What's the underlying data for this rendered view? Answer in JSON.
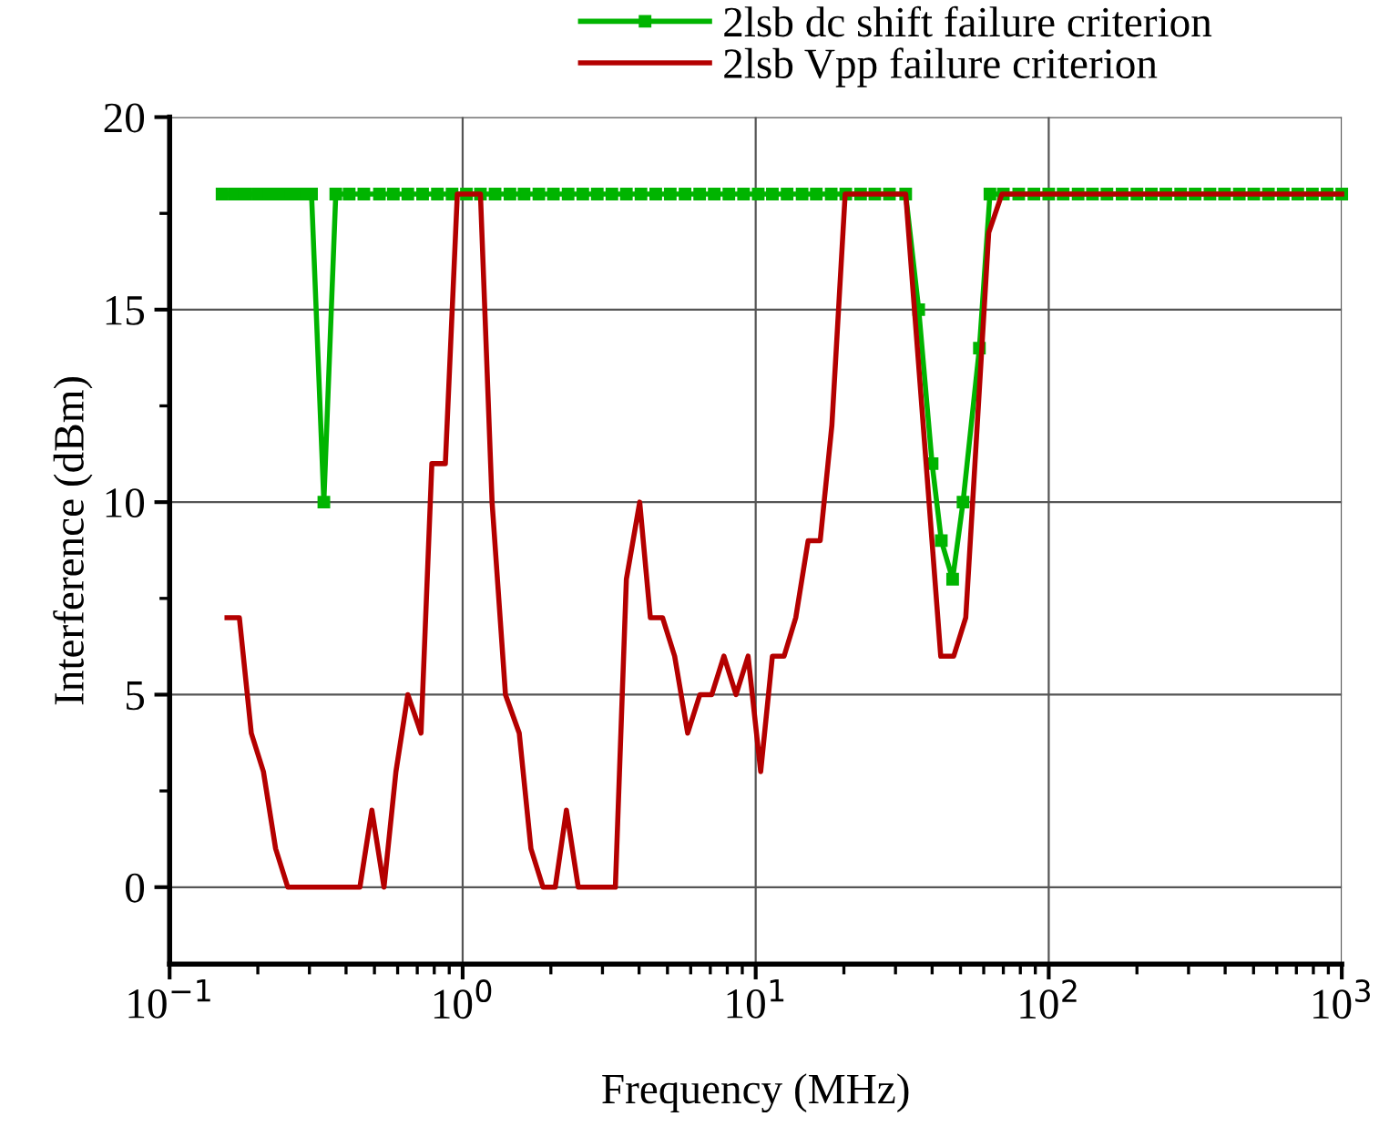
{
  "chart_data": {
    "type": "line",
    "xlabel": "Frequency (MHz)",
    "ylabel": "Interference (dBm)",
    "log": "x",
    "xlim": [
      0.1,
      1000
    ],
    "xticks": [
      {
        "value": 0.1,
        "label": "10$^{−1}$"
      },
      {
        "value": 1,
        "label": "10$^{0}$"
      },
      {
        "value": 10,
        "label": "10$^{1}$"
      },
      {
        "value": 100,
        "label": "10$^{2}$"
      },
      {
        "value": 1000,
        "label": "10$^{3}$"
      }
    ],
    "ylim": [
      -2,
      20
    ],
    "yticks": [
      0,
      5,
      10,
      15,
      20
    ],
    "grid": true,
    "legend": "top",
    "series": [
      {
        "name": "2lsb dc shift failure criterion",
        "color": "#00b400",
        "marker": "square",
        "x": [
          0.151,
          0.166,
          0.182,
          0.2,
          0.219,
          0.24,
          0.263,
          0.288,
          0.305,
          0.336,
          0.369,
          0.41,
          0.46,
          0.52,
          0.58,
          0.65,
          0.73,
          0.82,
          0.92,
          1.03,
          1.15,
          1.29,
          1.45,
          1.62,
          1.82,
          2.04,
          2.29,
          2.57,
          2.88,
          3.23,
          3.62,
          4.06,
          4.56,
          5.11,
          5.74,
          6.44,
          7.22,
          8.1,
          9.09,
          10.2,
          11.4,
          12.8,
          14.4,
          16.1,
          18.1,
          20.3,
          22.8,
          25.5,
          28.6,
          32.5,
          36,
          40,
          43,
          47,
          51,
          58,
          63,
          70,
          79,
          89,
          100,
          112,
          126,
          141,
          158,
          178,
          200,
          224,
          251,
          282,
          316,
          355,
          398,
          447,
          501,
          562,
          631,
          708,
          794,
          891,
          1000
        ],
        "values": [
          18,
          18,
          18,
          18,
          18,
          18,
          18,
          18,
          18,
          10,
          18,
          18,
          18,
          18,
          18,
          18,
          18,
          18,
          18,
          18,
          18,
          18,
          18,
          18,
          18,
          18,
          18,
          18,
          18,
          18,
          18,
          18,
          18,
          18,
          18,
          18,
          18,
          18,
          18,
          18,
          18,
          18,
          18,
          18,
          18,
          18,
          18,
          18,
          18,
          18,
          15,
          11,
          9,
          8,
          10,
          14,
          18,
          18,
          18,
          18,
          18,
          18,
          18,
          18,
          18,
          18,
          18,
          18,
          18,
          18,
          18,
          18,
          18,
          18,
          18,
          18,
          18,
          18,
          18,
          18,
          18
        ]
      },
      {
        "name": "2lsb Vpp failure criterion",
        "color": "#b40000",
        "marker": "none",
        "x": [
          0.157,
          0.173,
          0.19,
          0.209,
          0.23,
          0.253,
          0.446,
          0.49,
          0.539,
          0.592,
          0.65,
          0.721,
          0.785,
          0.873,
          0.959,
          1.15,
          1.26,
          1.4,
          1.56,
          1.71,
          1.88,
          2.07,
          2.26,
          2.48,
          3.32,
          3.62,
          4.02,
          4.37,
          4.81,
          5.29,
          5.86,
          6.45,
          7.08,
          7.79,
          8.57,
          9.42,
          10.4,
          11.4,
          12.5,
          13.7,
          15.1,
          16.6,
          18.2,
          20.2,
          32.5,
          42.8,
          47.4,
          52.1,
          62.4,
          69.2,
          1000
        ],
        "values": [
          7,
          7,
          4,
          3,
          1,
          0,
          0,
          2,
          0,
          3,
          5,
          4,
          11,
          11,
          18,
          18,
          10,
          5,
          4,
          1,
          0,
          0,
          2,
          0,
          0,
          8,
          10,
          7,
          7,
          6,
          4,
          5,
          5,
          6,
          5,
          6,
          3,
          6,
          6,
          7,
          9,
          9,
          12,
          18,
          18,
          6,
          6,
          7,
          17,
          18,
          18
        ]
      }
    ]
  }
}
